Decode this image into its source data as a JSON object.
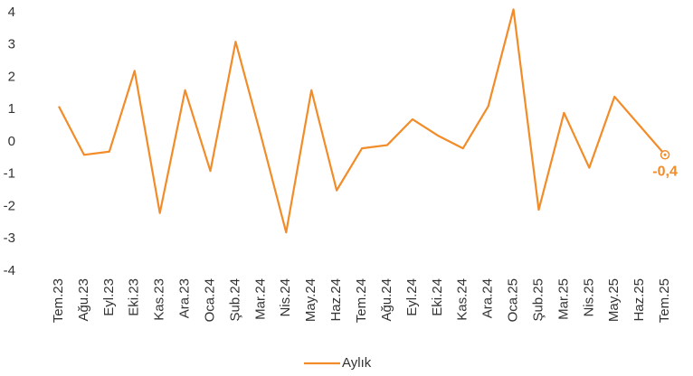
{
  "chart_data": {
    "type": "line",
    "categories": [
      "Tem.23",
      "Ağu.23",
      "Eyl.23",
      "Eki.23",
      "Kas.23",
      "Ara.23",
      "Oca.24",
      "Şub.24",
      "Mar.24",
      "Nis.24",
      "May.24",
      "Haz.24",
      "Tem.24",
      "Ağu.24",
      "Eyl.24",
      "Eki.24",
      "Kas.24",
      "Ara.24",
      "Oca.25",
      "Şub.25",
      "Mar.25",
      "Nis.25",
      "May.25",
      "Haz.25",
      "Tem.25"
    ],
    "series": [
      {
        "name": "Aylık",
        "color": "#f28c28",
        "values": [
          1.1,
          -0.4,
          -0.3,
          2.2,
          -2.2,
          1.6,
          -0.9,
          3.1,
          0.2,
          -2.8,
          1.6,
          -1.5,
          -0.2,
          -0.1,
          0.7,
          0.2,
          -0.2,
          1.1,
          4.1,
          -2.1,
          0.9,
          -0.8,
          1.4,
          0.5,
          -0.4
        ],
        "value_labels": [
          null,
          null,
          null,
          null,
          null,
          null,
          null,
          null,
          null,
          null,
          null,
          null,
          null,
          null,
          null,
          null,
          null,
          null,
          null,
          null,
          null,
          null,
          null,
          null,
          "-0,4"
        ]
      }
    ],
    "ylim": [
      -4,
      4
    ],
    "yticks": [
      -4,
      -3,
      -2,
      -1,
      0,
      1,
      2,
      3,
      4
    ],
    "grid": false,
    "legend": "bottom"
  }
}
